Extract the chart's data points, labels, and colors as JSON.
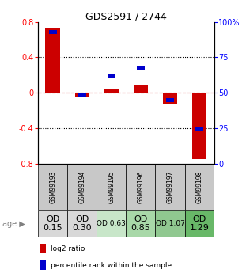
{
  "title": "GDS2591 / 2744",
  "samples": [
    "GSM99193",
    "GSM99194",
    "GSM99195",
    "GSM99196",
    "GSM99197",
    "GSM99198"
  ],
  "log2_ratio": [
    0.73,
    -0.05,
    0.05,
    0.08,
    -0.13,
    -0.75
  ],
  "percentile_rank": [
    93,
    48,
    62,
    67,
    45,
    25
  ],
  "age_labels": [
    "OD\n0.15",
    "OD\n0.30",
    "OD 0.63",
    "OD\n0.85",
    "OD 1.07",
    "OD\n1.29"
  ],
  "age_bg_colors": [
    "#d8d8d8",
    "#d8d8d8",
    "#c8e6c9",
    "#a8d8a8",
    "#90c890",
    "#68b868"
  ],
  "age_font_sizes": [
    8,
    8,
    6.5,
    8,
    6.5,
    8
  ],
  "ylim_left": [
    -0.8,
    0.8
  ],
  "ylim_right": [
    0,
    100
  ],
  "yticks_left": [
    -0.8,
    -0.4,
    0.0,
    0.4,
    0.8
  ],
  "yticks_right": [
    0,
    25,
    50,
    75,
    100
  ],
  "ytick_labels_right": [
    "0",
    "25",
    "50",
    "75",
    "100%"
  ],
  "bar_color": "#cc0000",
  "point_color": "#0000cc",
  "zero_line_color": "#cc0000",
  "dotted_color": "#000000",
  "table_header_bg": "#c8c8c8",
  "legend_bar_label": "log2 ratio",
  "legend_point_label": "percentile rank within the sample"
}
